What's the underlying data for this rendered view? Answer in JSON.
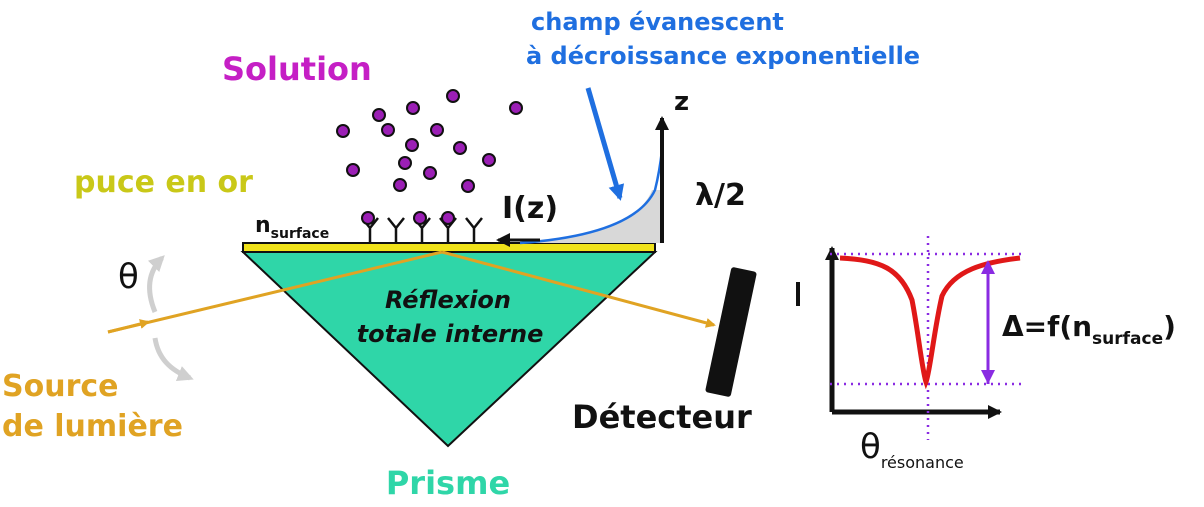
{
  "labels": {
    "solution": "Solution",
    "evanescent_line1": "champ évanescent",
    "evanescent_line2": "à décroissance exponentielle",
    "z_axis": "z",
    "intensity": "I(z)",
    "half_wavelength": "λ/2",
    "gold_chip": "puce en or",
    "n_surface_main": "n",
    "n_surface_sub": "surface",
    "theta": "θ",
    "reflection_line1": "Réflexion",
    "reflection_line2": "totale interne",
    "source_line1": "Source",
    "source_line2": "de lumière",
    "prism": "Prisme",
    "detector": "Détecteur",
    "delta_prefix": "Δ=f(n",
    "delta_sub": "surface",
    "delta_suffix": ")",
    "theta_resonance_main": "θ",
    "theta_resonance_sub": "résonance"
  },
  "colors": {
    "solution": "#c51fc5",
    "evanescent": "#1f6fe0",
    "gold_label": "#c9c818",
    "gold_chip": "#f0e21a",
    "prism": "#2fd6a8",
    "source": "#e0a323",
    "light_beam": "#e0a323",
    "dip_curve": "#e01818",
    "guides": "#8a2be2",
    "delta_arrow": "#8a2be2",
    "particles": "#9b1fb5",
    "arc_arrow": "#c8c8c8",
    "text": "#111111"
  },
  "icons": {
    "detector": "detector-bar",
    "particle": "circle-particle",
    "receptor": "y-shaped-receptor"
  }
}
